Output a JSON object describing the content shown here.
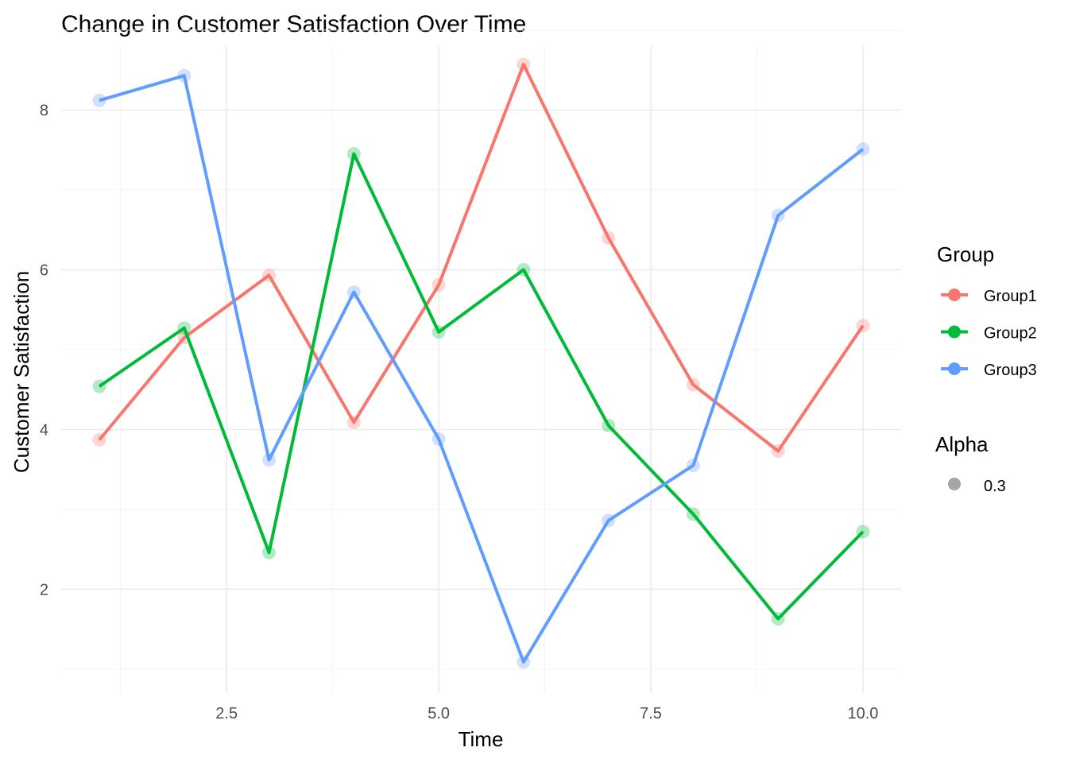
{
  "chart_data": {
    "type": "line",
    "title": "Change in Customer Satisfaction Over Time",
    "xlabel": "Time",
    "ylabel": "Customer Satisfaction",
    "x": [
      1,
      2,
      3,
      4,
      5,
      6,
      7,
      8,
      9,
      10
    ],
    "xlim": [
      0.55,
      10.45
    ],
    "ylim": [
      0.7,
      8.8
    ],
    "x_ticks": [
      2.5,
      5.0,
      7.5,
      10.0
    ],
    "x_tick_labels": [
      "2.5",
      "5.0",
      "7.5",
      "10.0"
    ],
    "y_ticks": [
      2,
      4,
      6,
      8
    ],
    "y_tick_labels": [
      "2",
      "4",
      "6",
      "8"
    ],
    "grid": true,
    "legend_placement": "right",
    "series": [
      {
        "name": "Group1",
        "color": "#F8766D",
        "values": [
          3.87,
          5.15,
          5.93,
          4.09,
          5.81,
          8.57,
          6.4,
          4.56,
          3.73,
          5.3
        ]
      },
      {
        "name": "Group2",
        "color": "#00BA38",
        "values": [
          4.54,
          5.27,
          2.46,
          7.45,
          5.22,
          6.0,
          4.05,
          2.94,
          1.63,
          2.72
        ]
      },
      {
        "name": "Group3",
        "color": "#619CFF",
        "values": [
          8.12,
          8.43,
          3.62,
          5.72,
          3.88,
          1.09,
          2.86,
          3.55,
          6.68,
          7.51
        ]
      }
    ],
    "legend": {
      "group_title": "Group",
      "alpha_title": "Alpha",
      "alpha_label": "0.3",
      "alpha_color": "#a6a6a6"
    }
  }
}
